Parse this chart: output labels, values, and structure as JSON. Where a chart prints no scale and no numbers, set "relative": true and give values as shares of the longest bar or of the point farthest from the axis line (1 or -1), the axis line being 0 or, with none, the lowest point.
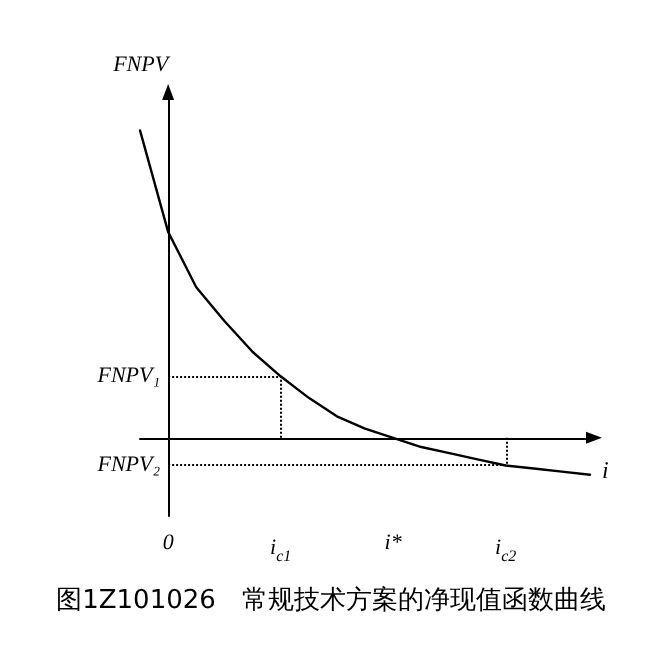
{
  "chart_data": {
    "type": "line",
    "title": "图1Z101026　常规技术方案的净现值函数曲线",
    "ylabel": "FNPV",
    "xlabel": "i",
    "relative": true,
    "categories": [
      null,
      "0",
      null,
      null,
      null,
      "i$_{c1}$",
      null,
      null,
      null,
      "i*",
      null,
      null,
      null,
      "i$_{c2}$",
      null,
      null,
      null
    ],
    "series": [
      {
        "color": "#000000",
        "values": [
          1,
          0.67,
          0.49,
          0.38,
          0.28,
          0.2,
          0.13,
          0.07,
          0.03,
          0,
          -0.03,
          -0.05,
          -0.07,
          -0.09,
          -0.1,
          -0.11,
          -0.12
        ]
      }
    ],
    "ref_lines": [
      {
        "axis": "y",
        "value": 0.2,
        "label": "FNPV₁",
        "line_style": "dotted"
      },
      {
        "axis": "y",
        "value": -0.09,
        "label": "FNPV₂",
        "line_style": "dotted"
      },
      {
        "axis": "x",
        "value": "i$_{c1}$",
        "line_style": "dotted"
      },
      {
        "axis": "x",
        "value": "i$_{c2}$",
        "line_style": "dotted"
      }
    ],
    "marker": "none",
    "line_style": "solid"
  }
}
